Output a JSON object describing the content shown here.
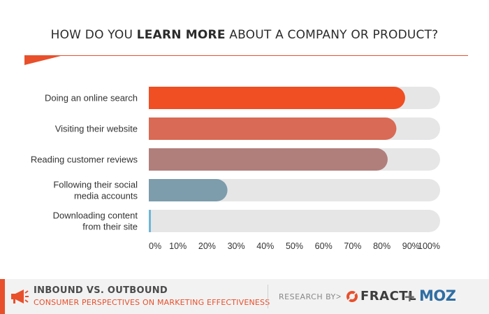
{
  "title_parts": {
    "pre": "HOW DO YOU ",
    "bold": "LEARN MORE",
    "post": " ABOUT A COMPANY OR PRODUCT?"
  },
  "colors": {
    "accent": "#e8502c",
    "track": "#e6e6e7",
    "moz_blue": "#2f6ea3"
  },
  "chart_data": {
    "type": "bar",
    "orientation": "horizontal",
    "title": "HOW DO YOU LEARN MORE ABOUT A COMPANY OR PRODUCT?",
    "xlim": [
      0,
      100
    ],
    "x_ticks": [
      "0%",
      "10%",
      "20%",
      "30%",
      "40%",
      "50%",
      "60%",
      "70%",
      "80%",
      "90%",
      "100%"
    ],
    "grid": false,
    "categories": [
      [
        "Doing an online search"
      ],
      [
        "Visiting their website"
      ],
      [
        "Reading customer reviews"
      ],
      [
        "Following their social",
        "media accounts"
      ],
      [
        "Downloading content",
        "from their site"
      ]
    ],
    "values": [
      88,
      85,
      82,
      27,
      1
    ],
    "bar_colors": [
      "#f04e23",
      "#d96a55",
      "#b07f7c",
      "#7d9cac",
      "#6fb6d6"
    ]
  },
  "footer": {
    "title": "INBOUND VS. OUTBOUND",
    "subtitle": "CONSUMER PERSPECTIVES ON MARKETING EFFECTIVENESS",
    "research_by": "RESEARCH BY",
    "arrow": ">",
    "fractl": "FRACTL",
    "plus": "+",
    "moz": "MOZ"
  }
}
